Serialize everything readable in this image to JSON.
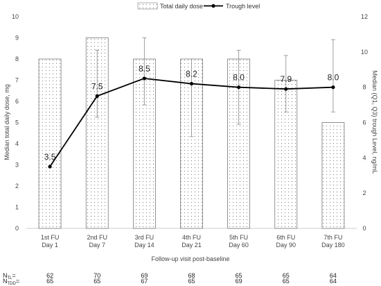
{
  "chart_data": {
    "type": "bar+line",
    "xlabel": "Follow-up visit post-baseline",
    "categories": [
      [
        "1st FU",
        "Day 1"
      ],
      [
        "2nd FU",
        "Day 7"
      ],
      [
        "3rd FU",
        "Day 14"
      ],
      [
        "4th FU",
        "Day 21"
      ],
      [
        "5th FU",
        "Day 60"
      ],
      [
        "6th FU",
        "Day 90"
      ],
      [
        "7th FU",
        "Day 180"
      ]
    ],
    "left_axis": {
      "label": "Median total daily dose, mg",
      "min": 0,
      "max": 10,
      "step": 1
    },
    "right_axis": {
      "label": "Median (Q1, Q3) trough Level, ng/mL",
      "min": 0,
      "max": 12,
      "step": 2
    },
    "legend": {
      "position": "top-center",
      "items": [
        "Total daily dose",
        "Trough level"
      ]
    },
    "bars": {
      "name": "Total daily dose",
      "axis": "left",
      "values": [
        8,
        9,
        8,
        8,
        8,
        7,
        5
      ]
    },
    "line": {
      "name": "Trough level",
      "axis": "right",
      "values": [
        3.5,
        7.5,
        8.5,
        8.2,
        8.0,
        7.9,
        8.0
      ],
      "labels": [
        "3.5",
        "7.5",
        "8.5",
        "8.2",
        "8.0",
        "7.9",
        "8.0"
      ],
      "q1": [
        null,
        6.3,
        7.0,
        5.2,
        5.9,
        6.6,
        6.6
      ],
      "q3": [
        null,
        10.1,
        10.8,
        9.6,
        10.1,
        9.8,
        10.7
      ]
    },
    "n_rows": [
      {
        "label_main": "N",
        "label_sub": "TL",
        "label_suffix": "=",
        "values": [
          "62",
          "70",
          "69",
          "68",
          "65",
          "65",
          "64"
        ]
      },
      {
        "label_main": "N",
        "label_sub": "TDD",
        "label_suffix": "=",
        "values": [
          "65",
          "65",
          "67",
          "65",
          "69",
          "65",
          "64"
        ]
      }
    ]
  }
}
